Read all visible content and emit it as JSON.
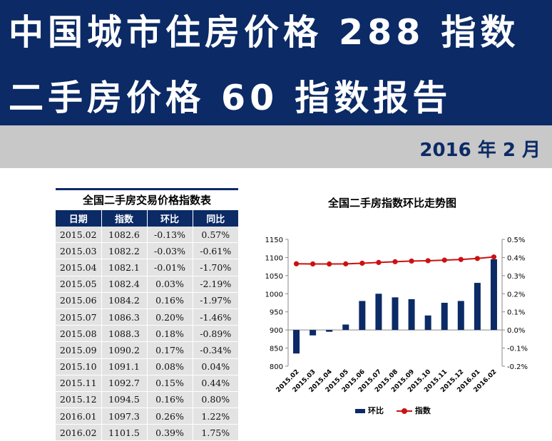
{
  "header": {
    "title_line1": "中国城市住房价格 288 指数",
    "title_line2": "二手房价格 60 指数报告",
    "date": "2016 年 2 月",
    "banner_color": "#0b2a66"
  },
  "table": {
    "title": "全国二手房交易价格指数表",
    "columns": [
      "日期",
      "指数",
      "环比",
      "同比"
    ],
    "rows": [
      [
        "2015.02",
        "1082.6",
        "-0.13%",
        "0.57%"
      ],
      [
        "2015.03",
        "1082.2",
        "-0.03%",
        "-0.61%"
      ],
      [
        "2015.04",
        "1082.1",
        "-0.01%",
        "-1.70%"
      ],
      [
        "2015.05",
        "1082.4",
        "0.03%",
        "-2.19%"
      ],
      [
        "2015.06",
        "1084.2",
        "0.16%",
        "-1.97%"
      ],
      [
        "2015.07",
        "1086.3",
        "0.20%",
        "-1.46%"
      ],
      [
        "2015.08",
        "1088.3",
        "0.18%",
        "-0.89%"
      ],
      [
        "2015.09",
        "1090.2",
        "0.17%",
        "-0.34%"
      ],
      [
        "2015.10",
        "1091.1",
        "0.08%",
        "0.04%"
      ],
      [
        "2015.11",
        "1092.7",
        "0.15%",
        "0.44%"
      ],
      [
        "2015.12",
        "1094.5",
        "0.16%",
        "0.80%"
      ],
      [
        "2016.01",
        "1097.3",
        "0.26%",
        "1.22%"
      ],
      [
        "2016.02",
        "1101.5",
        "0.39%",
        "1.75%"
      ]
    ]
  },
  "chart_data": {
    "type": "bar+line",
    "title": "全国二手房指数环比走势图",
    "categories": [
      "2015.02",
      "2015.03",
      "2015.04",
      "2015.05",
      "2015.06",
      "2015.07",
      "2015.08",
      "2015.09",
      "2015.10",
      "2015.11",
      "2015.12",
      "2016.01",
      "2016.02"
    ],
    "series": [
      {
        "name": "环比",
        "type": "bar",
        "axis": "right",
        "color": "#0b2a66",
        "values": [
          -0.13,
          -0.03,
          -0.01,
          0.03,
          0.16,
          0.2,
          0.18,
          0.17,
          0.08,
          0.15,
          0.16,
          0.26,
          0.39
        ]
      },
      {
        "name": "指数",
        "type": "line",
        "axis": "left",
        "color": "#cc1111",
        "values": [
          1082.6,
          1082.2,
          1082.1,
          1082.4,
          1084.2,
          1086.3,
          1088.3,
          1090.2,
          1091.1,
          1092.7,
          1094.5,
          1097.3,
          1101.5
        ]
      }
    ],
    "ylim_left": [
      800,
      1150
    ],
    "yticks_left": [
      "800",
      "850",
      "900",
      "950",
      "1000",
      "1050",
      "1100",
      "1150"
    ],
    "ylim_right": [
      -0.2,
      0.5
    ],
    "yticks_right": [
      "-0.2%",
      "-0.1%",
      "0.0%",
      "0.1%",
      "0.2%",
      "0.3%",
      "0.4%",
      "0.5%"
    ],
    "legend_position": "bottom",
    "grid": false
  }
}
